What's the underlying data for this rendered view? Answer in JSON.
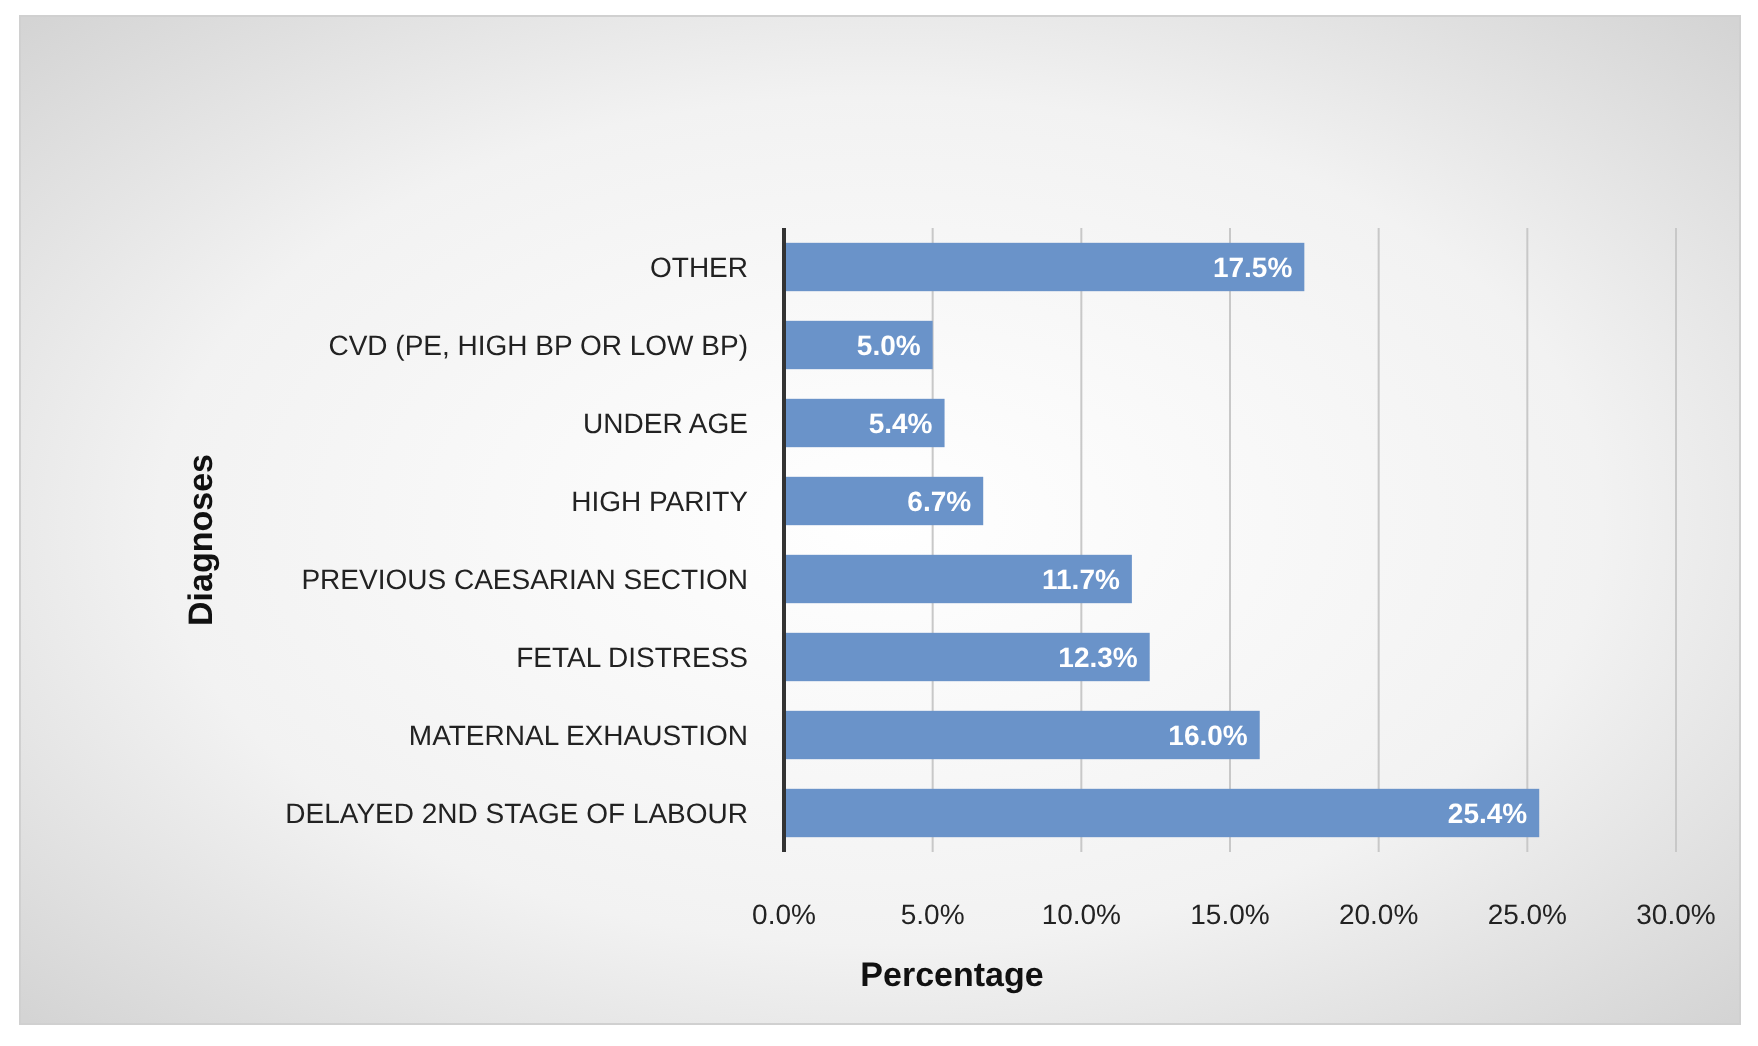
{
  "chart_data": {
    "type": "bar",
    "orientation": "horizontal",
    "xlabel": "Percentage",
    "ylabel": "Diagnoses",
    "categories": [
      "OTHER",
      "CVD (PE, HIGH BP OR LOW BP)",
      "UNDER AGE",
      "HIGH PARITY ",
      "PREVIOUS CAESARIAN SECTION",
      "FETAL DISTRESS",
      "MATERNAL EXHAUSTION",
      "DELAYED 2ND STAGE OF LABOUR"
    ],
    "values": [
      17.5,
      5.0,
      5.4,
      6.7,
      11.7,
      12.3,
      16.0,
      25.4
    ],
    "value_labels": [
      "17.5%",
      "5.0%",
      "5.4%",
      "6.7%",
      "11.7%",
      "12.3%",
      "16.0%",
      "25.4%"
    ],
    "color": "#6a93c9",
    "xlim": [
      0,
      30
    ],
    "xticks": [
      {
        "value": 0,
        "label": "0.0%"
      },
      {
        "value": 5,
        "label": "5.0%"
      },
      {
        "value": 10,
        "label": "10.0%"
      },
      {
        "value": 15,
        "label": "15.0%"
      },
      {
        "value": 20,
        "label": "20.0%"
      },
      {
        "value": 25,
        "label": "25.0%"
      },
      {
        "value": 30,
        "label": "30.0%"
      }
    ],
    "grid": "x"
  }
}
